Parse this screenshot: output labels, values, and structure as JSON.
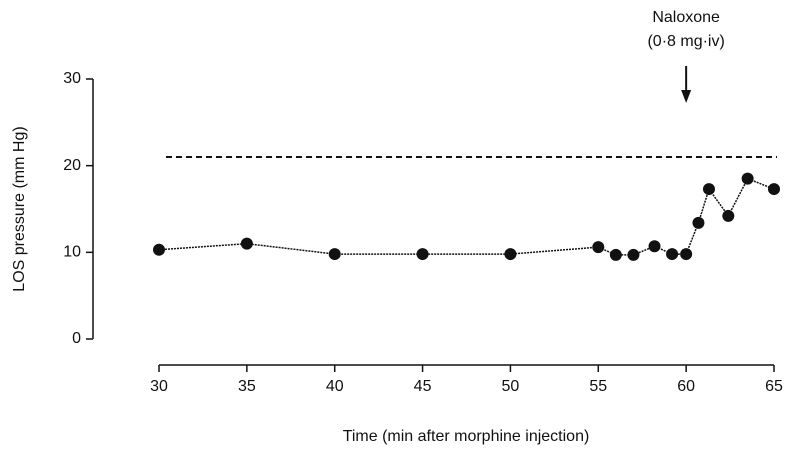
{
  "chart_data": {
    "type": "line",
    "x_label": "Time (min after morphine injection)",
    "y_label": "LOS pressure (mm Hg)",
    "x": [
      30,
      35,
      40,
      45,
      50,
      55,
      56,
      57,
      58.2,
      59.2,
      60,
      60.7,
      61.3,
      62.4,
      63.5,
      65
    ],
    "values": [
      10.3,
      11.0,
      9.8,
      9.8,
      9.8,
      10.6,
      9.7,
      9.7,
      10.7,
      9.8,
      9.8,
      13.4,
      17.3,
      14.2,
      18.5,
      17.3
    ],
    "color": "#111111",
    "xlim": [
      30,
      65
    ],
    "xticks": [
      30,
      35,
      40,
      45,
      50,
      55,
      60,
      65
    ],
    "ylim": [
      0,
      30
    ],
    "yticks": [
      0,
      10,
      20,
      30
    ],
    "reference_value": 21,
    "annotation": [
      "Naloxone",
      "(0·8 mg·iv)"
    ],
    "annotation_x": 60
  }
}
